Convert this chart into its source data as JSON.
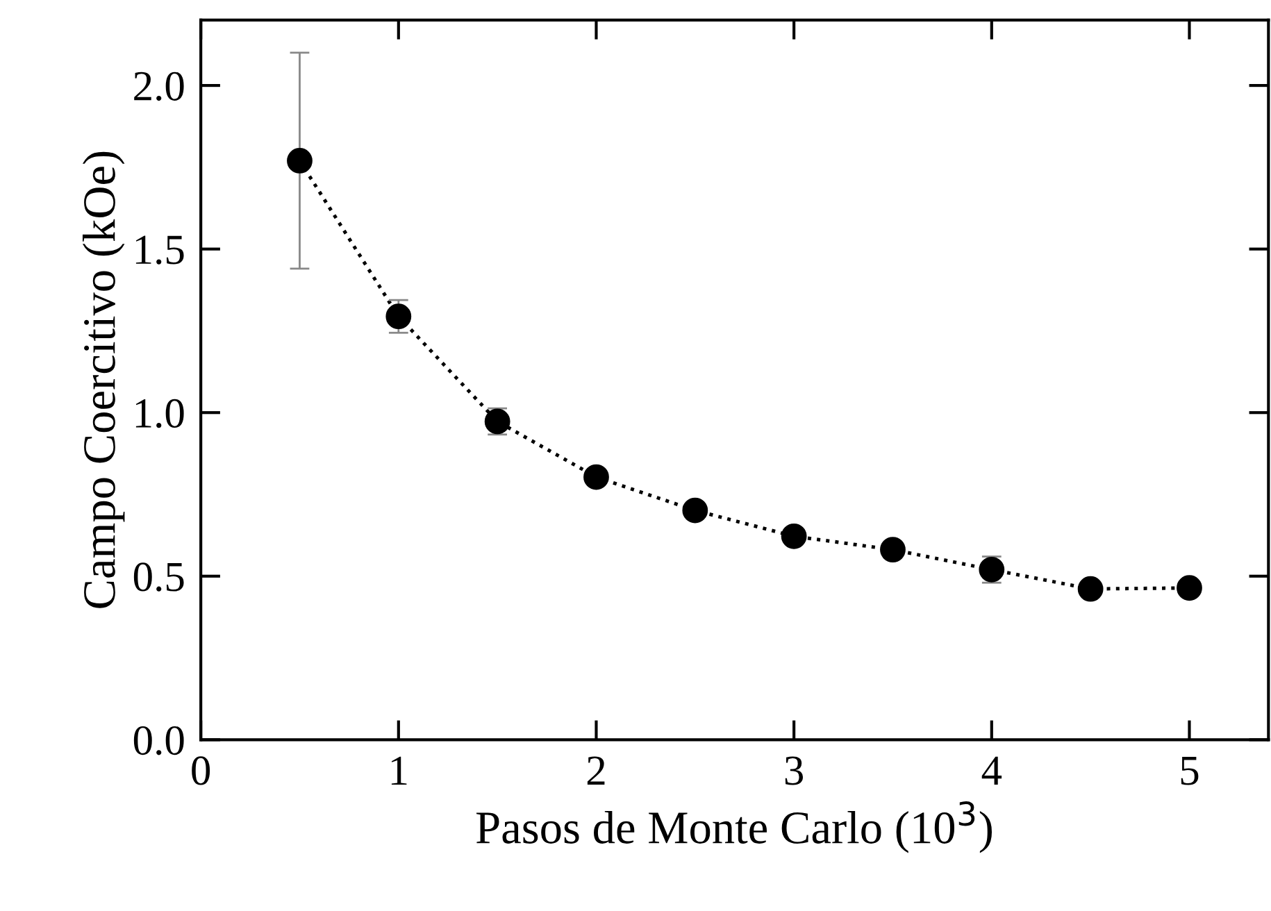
{
  "chart_data": {
    "type": "scatter",
    "xlabel": "Pasos de Monte Carlo (10$^{3}$)",
    "ylabel": "Campo Coercitivo (kOe)",
    "xlim": [
      0,
      5.4
    ],
    "ylim": [
      0,
      2.2
    ],
    "xticks": [
      0,
      1,
      2,
      3,
      4,
      5
    ],
    "yticks": [
      {
        "value": 0,
        "label": "0.0"
      },
      {
        "value": 0.5,
        "label": "0.5"
      },
      {
        "value": 1,
        "label": "1.0"
      },
      {
        "value": 1.5,
        "label": "1.5"
      },
      {
        "value": 2,
        "label": "2.0"
      }
    ],
    "grid": false,
    "legend": false,
    "series": [
      {
        "type": "line",
        "color": "#000000",
        "line_style": "dotted",
        "marker": "none",
        "x": [
          0.5,
          1,
          1.5,
          2,
          2.5,
          3,
          3.5,
          4,
          4.5,
          5
        ],
        "values": [
          1.77,
          1.294,
          0.973,
          0.803,
          0.701,
          0.622,
          0.581,
          0.52,
          0.461,
          0.464
        ]
      },
      {
        "color": "#000000",
        "marker": "circle",
        "x": [
          0.5,
          1,
          1.5,
          2,
          2.5,
          3,
          3.5,
          4,
          4.5,
          5
        ],
        "values": [
          1.77,
          1.294,
          0.973,
          0.803,
          0.701,
          0.622,
          0.581,
          0.52,
          0.461,
          0.464
        ],
        "errors": [
          0.33,
          0.05,
          0.04,
          null,
          null,
          null,
          null,
          0.04,
          null,
          null
        ]
      }
    ]
  }
}
